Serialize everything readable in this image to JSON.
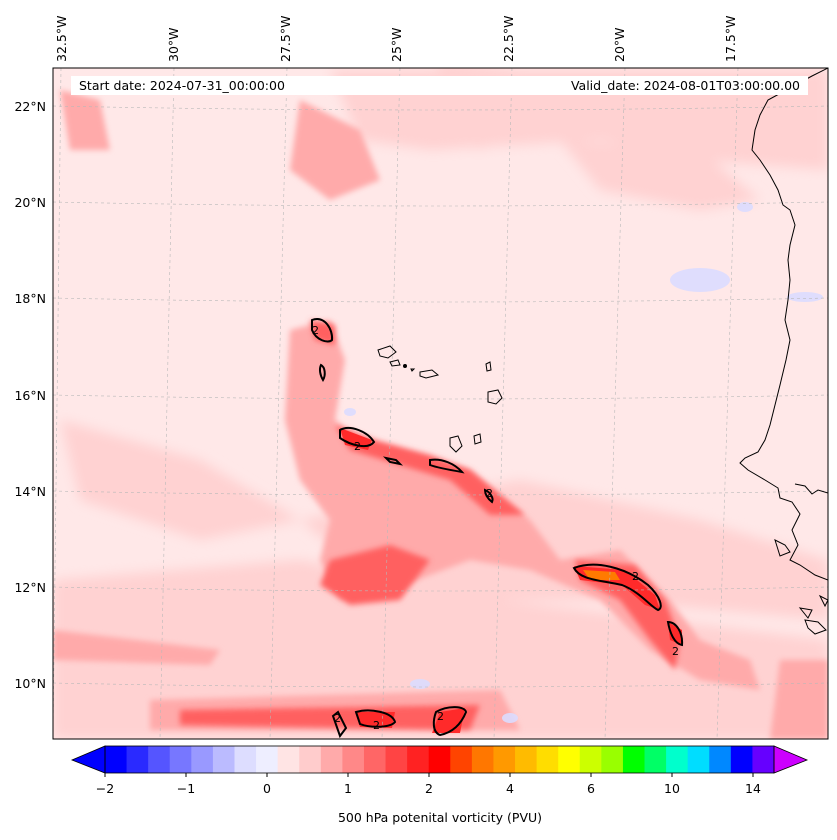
{
  "map": {
    "start_label": "Start date: 2024-07-31_00:00:00",
    "valid_label": "Valid_date: 2024-08-01T03:00:00.00",
    "lon_labels": [
      "32.5°W",
      "30°W",
      "27.5°W",
      "25°W",
      "22.5°W",
      "20°W",
      "17.5°W"
    ],
    "lat_labels": [
      "22°N",
      "20°N",
      "18°N",
      "16°N",
      "14°N",
      "12°N",
      "10°N"
    ],
    "contour_label": "2",
    "contour_level_pvu": 2
  },
  "colorbar": {
    "title": "500 hPa potenital vorticity (PVU)",
    "ticks": [
      "−2",
      "−1",
      "0",
      "1",
      "2",
      "4",
      "6",
      "10",
      "14"
    ],
    "colors": [
      "#0000ff",
      "#2a2aff",
      "#5555ff",
      "#7777ff",
      "#9999ff",
      "#bbbbff",
      "#ddddff",
      "#eeeeff",
      "#ffe4e4",
      "#ffcccc",
      "#ffaaaa",
      "#ff8888",
      "#ff6666",
      "#ff4444",
      "#ff2222",
      "#ff0000",
      "#ff4400",
      "#ff7700",
      "#ff9900",
      "#ffbb00",
      "#ffdd00",
      "#ffff00",
      "#ccff00",
      "#99ff00",
      "#00ff00",
      "#00ff66",
      "#00ffcc",
      "#00ddff",
      "#0088ff",
      "#0000ff",
      "#6600ff"
    ],
    "extend_low_color": "#0000ff",
    "extend_high_color": "#cc00ff"
  }
}
